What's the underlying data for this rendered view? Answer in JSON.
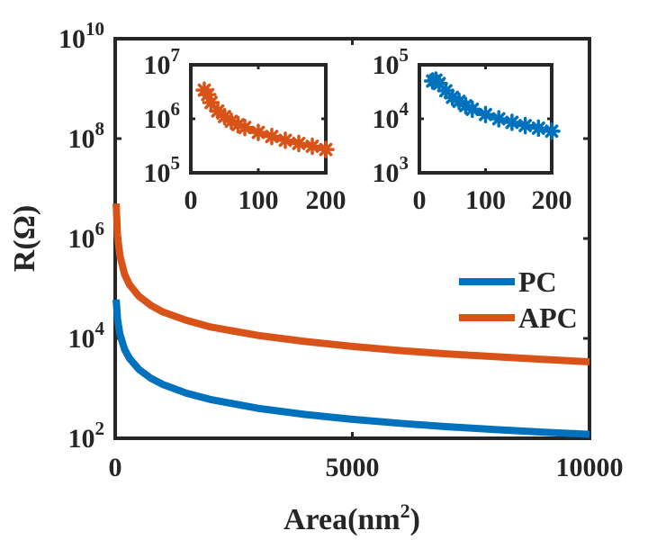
{
  "chart_data": [
    {
      "id": "main",
      "type": "line",
      "xlabel": "Area(nm",
      "xlabel_sup": "2",
      "xlabel_close": ")",
      "ylabel": "R(Ω)",
      "xscale": "linear",
      "yscale": "log",
      "xlim": [
        0,
        10000
      ],
      "ylim": [
        100,
        10000000000
      ],
      "x_ticks": [
        {
          "value": 0,
          "label": "0"
        },
        {
          "value": 5000,
          "label": "5000"
        },
        {
          "value": 10000,
          "label": "10000"
        }
      ],
      "y_ticks": [
        {
          "value": 100,
          "base": "10",
          "exp": "2"
        },
        {
          "value": 10000,
          "base": "10",
          "exp": "4"
        },
        {
          "value": 1000000,
          "base": "10",
          "exp": "6"
        },
        {
          "value": 100000000,
          "base": "10",
          "exp": "8"
        },
        {
          "value": 10000000000,
          "base": "10",
          "exp": "10"
        }
      ],
      "legend_position": "right",
      "series": [
        {
          "name": "PC",
          "color": "#0072BD",
          "x": [
            20,
            50,
            100,
            200,
            300,
            500,
            750,
            1000,
            1500,
            2000,
            3000,
            4000,
            5000,
            6000,
            7000,
            8000,
            9000,
            10000
          ],
          "y": [
            60000,
            24000,
            12000,
            6000,
            4000,
            2400,
            1600,
            1200,
            800,
            600,
            400,
            300,
            240,
            200,
            171,
            150,
            133,
            120
          ]
        },
        {
          "name": "APC",
          "color": "#D95319",
          "x": [
            20,
            50,
            100,
            200,
            300,
            500,
            750,
            1000,
            1500,
            2000,
            3000,
            4000,
            5000,
            6000,
            7000,
            8000,
            9000,
            10000
          ],
          "y": [
            5000000,
            1100000,
            450000,
            190000,
            120000,
            70000,
            46000,
            34000,
            23000,
            17000,
            11500,
            8700,
            6900,
            5700,
            4900,
            4300,
            3800,
            3400
          ]
        }
      ]
    },
    {
      "id": "inset_apc",
      "type": "line",
      "marker": "asterisk",
      "color": "#D95319",
      "xscale": "linear",
      "yscale": "log",
      "xlim": [
        0,
        200
      ],
      "ylim": [
        100000,
        10000000
      ],
      "x_ticks": [
        {
          "value": 0,
          "label": "0"
        },
        {
          "value": 100,
          "label": "100"
        },
        {
          "value": 200,
          "label": "200"
        }
      ],
      "y_ticks": [
        {
          "value": 100000,
          "base": "10",
          "exp": "5"
        },
        {
          "value": 1000000,
          "base": "10",
          "exp": "6"
        },
        {
          "value": 10000000,
          "base": "10",
          "exp": "7"
        }
      ],
      "x": [
        20,
        25,
        30,
        40,
        50,
        60,
        70,
        80,
        100,
        120,
        140,
        160,
        180,
        200
      ],
      "y": [
        3400000,
        2800000,
        2000000,
        1400000,
        1100000,
        900000,
        780000,
        690000,
        560000,
        470000,
        400000,
        350000,
        310000,
        270000
      ]
    },
    {
      "id": "inset_pc",
      "type": "line",
      "marker": "asterisk",
      "color": "#0072BD",
      "xscale": "linear",
      "yscale": "log",
      "xlim": [
        0,
        200
      ],
      "ylim": [
        1000,
        100000
      ],
      "x_ticks": [
        {
          "value": 0,
          "label": "0"
        },
        {
          "value": 100,
          "label": "100"
        },
        {
          "value": 200,
          "label": "200"
        }
      ],
      "y_ticks": [
        {
          "value": 1000,
          "base": "10",
          "exp": "3"
        },
        {
          "value": 10000,
          "base": "10",
          "exp": "4"
        },
        {
          "value": 100000,
          "base": "10",
          "exp": "5"
        }
      ],
      "x": [
        20,
        25,
        30,
        40,
        50,
        60,
        70,
        80,
        100,
        120,
        140,
        160,
        180,
        200
      ],
      "y": [
        50000,
        52000,
        45000,
        33000,
        25000,
        21000,
        17500,
        15000,
        12000,
        10000,
        8600,
        7500,
        6700,
        5900
      ]
    }
  ]
}
